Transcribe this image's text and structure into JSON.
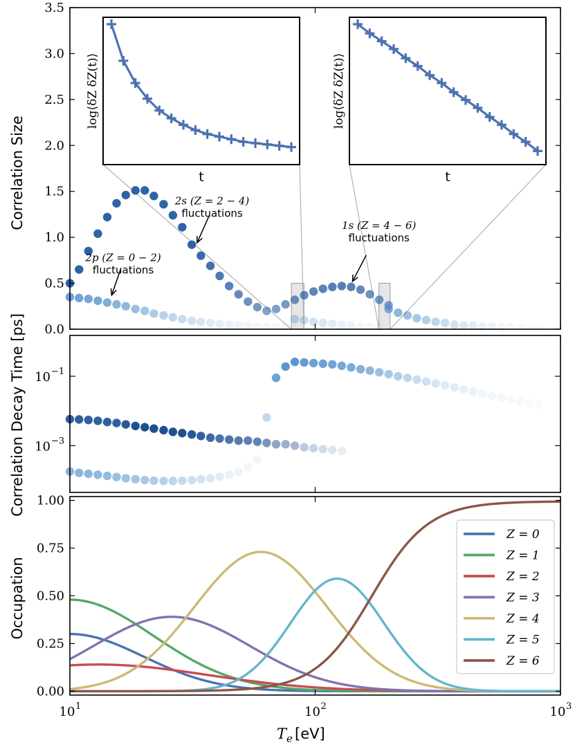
{
  "chart_data": [
    {
      "id": "top",
      "type": "scatter",
      "ylabel": "Correlation Size",
      "xscale": "log",
      "xlim": [
        10,
        1000
      ],
      "ylim": [
        0,
        3.5
      ],
      "yticks": [
        0.0,
        0.5,
        1.0,
        1.5,
        2.0,
        2.5,
        3.0,
        3.5
      ],
      "ytick_labels": [
        "0.0",
        "0.5",
        "1.0",
        "1.5",
        "2.0",
        "2.5",
        "3.0",
        "3.5"
      ],
      "series": [
        {
          "color": "#2f63a6",
          "x": [
            10.0,
            10.9,
            11.9,
            13.0,
            14.2,
            15.5,
            16.9,
            18.5,
            20.2,
            22.0,
            24.1,
            26.3,
            28.7,
            31.4,
            34.2,
            37.4,
            40.8,
            44.6,
            48.7,
            53.2,
            58.1,
            63.4,
            69.3,
            75.7,
            82.6,
            90.2,
            98.5,
            107.6,
            117.5,
            128.3,
            140.1,
            153.0,
            167.1,
            182.5,
            199.3
          ],
          "y": [
            0.5,
            0.65,
            0.85,
            1.04,
            1.22,
            1.37,
            1.46,
            1.51,
            1.51,
            1.45,
            1.36,
            1.24,
            1.11,
            0.92,
            0.8,
            0.69,
            0.58,
            0.47,
            0.38,
            0.3,
            0.24,
            0.2,
            0.22,
            0.27,
            0.32,
            0.37,
            0.41,
            0.44,
            0.46,
            0.47,
            0.46,
            0.43,
            0.38,
            0.32,
            0.26
          ],
          "alpha": [
            1.0,
            1.0,
            1.0,
            1.0,
            1.0,
            1.0,
            1.0,
            1.0,
            1.0,
            1.0,
            1.0,
            1.0,
            1.0,
            1.0,
            0.95,
            0.9,
            0.85,
            0.8,
            0.75,
            0.7,
            0.65,
            0.6,
            0.6,
            0.65,
            0.7,
            0.75,
            0.78,
            0.8,
            0.82,
            0.82,
            0.8,
            0.75,
            0.7,
            0.65,
            0.6
          ]
        },
        {
          "color": "#4a8bc9",
          "x": [
            10.0,
            10.9,
            11.9,
            13.0,
            14.2,
            15.5,
            16.9,
            18.5,
            20.2,
            22.0,
            24.1,
            26.3,
            28.7,
            31.4,
            34.2,
            37.4,
            40.8,
            44.6,
            48.7,
            53.2,
            58.1,
            63.4,
            69.3,
            75.7,
            82.6,
            90.2,
            98.5,
            107.6,
            117.5,
            128.3,
            140.1,
            153.0,
            167.1,
            182.5,
            199.3,
            217.7,
            237.8,
            259.7,
            283.6,
            309.7,
            338.3,
            369.5,
            403.5,
            440.7,
            481.3,
            525.7,
            574.1,
            627.1,
            684.9,
            748.0,
            817.0
          ],
          "y": [
            0.35,
            0.34,
            0.33,
            0.31,
            0.29,
            0.27,
            0.25,
            0.22,
            0.2,
            0.17,
            0.15,
            0.13,
            0.11,
            0.09,
            0.08,
            0.07,
            0.06,
            0.05,
            0.04,
            0.04,
            0.03,
            0.03,
            0.03,
            0.03,
            0.11,
            0.1,
            0.08,
            0.07,
            0.06,
            0.05,
            0.04,
            0.03,
            0.03,
            0.02,
            0.22,
            0.18,
            0.15,
            0.12,
            0.1,
            0.08,
            0.07,
            0.05,
            0.04,
            0.04,
            0.03,
            0.03,
            0.02,
            0.02,
            0.02,
            0.01,
            0.01
          ],
          "alpha": [
            0.8,
            0.78,
            0.76,
            0.74,
            0.7,
            0.66,
            0.62,
            0.56,
            0.5,
            0.45,
            0.4,
            0.35,
            0.3,
            0.26,
            0.22,
            0.18,
            0.15,
            0.12,
            0.1,
            0.08,
            0.07,
            0.06,
            0.05,
            0.05,
            0.35,
            0.3,
            0.25,
            0.2,
            0.16,
            0.12,
            0.1,
            0.08,
            0.06,
            0.05,
            0.7,
            0.62,
            0.55,
            0.48,
            0.42,
            0.36,
            0.3,
            0.25,
            0.2,
            0.16,
            0.13,
            0.1,
            0.08,
            0.06,
            0.05,
            0.04,
            0.03
          ]
        }
      ],
      "annotations": [
        {
          "math": "2p (Z = 0 − 2)",
          "text": "fluctuations",
          "x_text": 16.5,
          "y_text": 0.74,
          "x_arrow": 14.8,
          "y_arrow": 0.37
        },
        {
          "math": "2s (Z = 2 − 4)",
          "text": "fluctuations",
          "x_text": 38.0,
          "y_text": 1.36,
          "x_arrow": 33.0,
          "y_arrow": 0.94
        },
        {
          "math": "1s (Z = 4 − 6)",
          "text": "fluctuations",
          "x_text": 182.0,
          "y_text": 1.09,
          "x_arrow": 142.0,
          "y_arrow": 0.52
        }
      ],
      "shaded_boxes": [
        {
          "x": [
            80.0,
            90.0
          ],
          "y": [
            0.0,
            0.5
          ]
        },
        {
          "x": [
            182.0,
            202.0
          ],
          "y": [
            0.0,
            0.5
          ]
        }
      ],
      "insets": [
        {
          "id": "inset-left",
          "xlabel": "t",
          "ylabel": "log⟨δZ δZ(t)⟩",
          "t": [
            0,
            1,
            2,
            3,
            4,
            5,
            6,
            7,
            8,
            9,
            10,
            11,
            12,
            13,
            14,
            15
          ],
          "y": [
            1.0,
            0.72,
            0.55,
            0.43,
            0.34,
            0.28,
            0.23,
            0.19,
            0.16,
            0.14,
            0.12,
            0.1,
            0.09,
            0.08,
            0.07,
            0.06
          ]
        },
        {
          "id": "inset-right",
          "xlabel": "t",
          "ylabel": "log⟨δZ δZ(t)⟩",
          "t": [
            0,
            1,
            2,
            3,
            4,
            5,
            6,
            7,
            8,
            9,
            10,
            11,
            12,
            13,
            14,
            15
          ],
          "y": [
            1.0,
            0.93,
            0.87,
            0.81,
            0.74,
            0.68,
            0.61,
            0.55,
            0.48,
            0.42,
            0.36,
            0.29,
            0.23,
            0.16,
            0.1,
            0.03
          ]
        }
      ]
    },
    {
      "id": "middle",
      "type": "scatter",
      "ylabel": "Correlation Decay Time [ps]",
      "xscale": "log",
      "yscale": "log",
      "xlim": [
        10,
        1000
      ],
      "ylim": [
        4.5e-05,
        1.5
      ],
      "ytick_labels": [
        {
          "base": "10",
          "exp": "−1",
          "value": 0.1
        },
        {
          "base": "10",
          "exp": "−3",
          "value": 0.001
        }
      ],
      "series": [
        {
          "color": "#1d4f91",
          "x": [
            10.0,
            10.9,
            11.9,
            13.0,
            14.2,
            15.5,
            16.9,
            18.5,
            20.2,
            22.0,
            24.1,
            26.3,
            28.7,
            31.4,
            34.2,
            37.4,
            40.8,
            44.6,
            48.7,
            53.2,
            58.1,
            63.4,
            69.3,
            75.7,
            82.6,
            90.2,
            98.5,
            107.6,
            117.5,
            128.3
          ],
          "y": [
            0.0058,
            0.0057,
            0.0055,
            0.0052,
            0.0048,
            0.0045,
            0.0041,
            0.0037,
            0.0034,
            0.0031,
            0.0028,
            0.0025,
            0.0023,
            0.0021,
            0.0019,
            0.0017,
            0.0016,
            0.0015,
            0.0014,
            0.0014,
            0.0013,
            0.0012,
            0.0011,
            0.0011,
            0.001,
            0.0009,
            0.00085,
            0.0008,
            0.00075,
            0.0007
          ],
          "alpha": [
            0.9,
            0.9,
            0.9,
            0.9,
            0.9,
            0.9,
            0.95,
            1.0,
            1.0,
            1.0,
            1.0,
            1.0,
            1.0,
            0.95,
            0.9,
            0.85,
            0.8,
            0.78,
            0.75,
            0.72,
            0.7,
            0.6,
            0.5,
            0.45,
            0.4,
            0.3,
            0.25,
            0.2,
            0.15,
            0.1
          ]
        },
        {
          "color": "#4a8bc9",
          "x": [
            10.0,
            10.9,
            11.9,
            13.0,
            14.2,
            15.5,
            16.9,
            18.5,
            20.2,
            22.0,
            24.1,
            26.3,
            28.7,
            31.4,
            34.2,
            37.4,
            40.8,
            44.6,
            48.7,
            53.2
          ],
          "y": [
            0.00018,
            0.000165,
            0.000155,
            0.000145,
            0.000135,
            0.000125,
            0.000115,
            0.000108,
            0.000102,
            9.8e-05,
            9.6e-05,
            9.6e-05,
            9.8e-05,
            0.000102,
            0.000108,
            0.000115,
            0.000128,
            0.000145,
            0.000175,
            0.00024
          ],
          "alpha": [
            0.65,
            0.64,
            0.62,
            0.6,
            0.58,
            0.55,
            0.52,
            0.5,
            0.47,
            0.44,
            0.4,
            0.36,
            0.32,
            0.28,
            0.24,
            0.2,
            0.16,
            0.13,
            0.1,
            0.08
          ]
        },
        {
          "color": "#4a8bc9",
          "x": [
            58.1,
            63.4,
            69.3,
            75.7,
            82.6,
            90.2,
            98.5,
            107.6,
            117.5,
            128.3,
            140.1,
            153.0,
            167.1,
            182.5,
            199.3,
            217.7,
            237.8,
            259.7,
            283.6,
            309.7,
            338.3,
            369.5,
            403.5,
            440.7,
            481.3,
            525.7,
            574.1,
            627.1,
            684.9,
            748.0,
            817.0
          ],
          "y": [
            0.0004,
            0.0065,
            0.09,
            0.19,
            0.26,
            0.25,
            0.24,
            0.23,
            0.22,
            0.2,
            0.18,
            0.16,
            0.145,
            0.13,
            0.115,
            0.1,
            0.09,
            0.08,
            0.07,
            0.062,
            0.055,
            0.048,
            0.042,
            0.036,
            0.031,
            0.027,
            0.024,
            0.021,
            0.019,
            0.017,
            0.015
          ],
          "alpha": [
            0.08,
            0.35,
            0.8,
            0.9,
            0.9,
            0.85,
            0.82,
            0.8,
            0.78,
            0.75,
            0.72,
            0.68,
            0.62,
            0.55,
            0.48,
            0.42,
            0.36,
            0.3,
            0.26,
            0.22,
            0.19,
            0.16,
            0.13,
            0.11,
            0.09,
            0.08,
            0.07,
            0.06,
            0.05,
            0.04,
            0.03
          ]
        }
      ]
    },
    {
      "id": "bottom",
      "type": "line",
      "ylabel": "Occupation",
      "xlabel_math": "T",
      "xlabel_sub": "e",
      "xlabel_unit": "[eV]",
      "xscale": "log",
      "xlim": [
        10,
        1000
      ],
      "ylim": [
        -0.02,
        1.02
      ],
      "yticks": [
        0.0,
        0.25,
        0.5,
        0.75,
        1.0
      ],
      "ytick_labels": [
        "0.00",
        "0.25",
        "0.50",
        "0.75",
        "1.00"
      ],
      "xtick_labels": [
        {
          "base": "10",
          "exp": "1",
          "value": 10
        },
        {
          "base": "10",
          "exp": "2",
          "value": 100
        },
        {
          "base": "10",
          "exp": "3",
          "value": 1000
        }
      ],
      "legend_position": "right",
      "series": [
        {
          "name": "Z = 0",
          "color": "#4c72b0",
          "center": 10.0,
          "peak": 0.3,
          "width": 0.3,
          "x0": 10,
          "x1": 1000
        },
        {
          "name": "Z = 1",
          "color": "#55a868",
          "center": 10.0,
          "peak": 0.48,
          "width": 0.34,
          "x0": 10,
          "x1": 1000
        },
        {
          "name": "Z = 2",
          "color": "#c44e52",
          "center": 13.0,
          "peak": 0.14,
          "width": 0.45,
          "x0": 10,
          "x1": 1000
        },
        {
          "name": "Z = 3",
          "color": "#8172b2",
          "center": 26.0,
          "peak": 0.39,
          "width": 0.32,
          "x0": 10,
          "x1": 1000
        },
        {
          "name": "Z = 4",
          "color": "#ccb974",
          "center": 60.0,
          "peak": 0.73,
          "width": 0.27,
          "x0": 10,
          "x1": 1000
        },
        {
          "name": "Z = 5",
          "color": "#64b5cd",
          "center": 123.0,
          "peak": 0.59,
          "width": 0.19,
          "x0": 10,
          "x1": 1000
        },
        {
          "name": "Z = 6",
          "color": "#8c564b",
          "type": "sigmoid",
          "center": 170.0,
          "peak": 0.995,
          "width": 0.115,
          "x0": 10,
          "x1": 1000
        }
      ]
    }
  ]
}
